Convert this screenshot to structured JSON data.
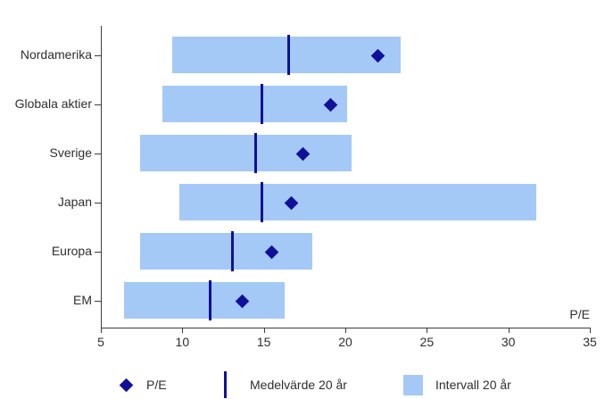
{
  "chart_data": {
    "type": "bar",
    "subtype": "horizontal-range-with-markers",
    "categories": [
      "Nordamerika",
      "Globala aktier",
      "Sverige",
      "Japan",
      "Europa",
      "EM"
    ],
    "series": [
      {
        "name": "P/E",
        "marker": "diamond",
        "values": [
          22.0,
          19.1,
          17.4,
          16.7,
          15.5,
          13.7
        ]
      },
      {
        "name": "Medelvärde 20 år",
        "marker": "vline",
        "values": [
          16.5,
          14.9,
          14.5,
          14.9,
          13.1,
          11.7
        ]
      },
      {
        "name": "Intervall 20 år",
        "marker": "range",
        "low": [
          9.4,
          8.8,
          7.4,
          9.8,
          7.4,
          6.4
        ],
        "high": [
          23.4,
          20.1,
          20.4,
          31.7,
          18.0,
          16.3
        ]
      }
    ],
    "xlabel": "P/E",
    "x_ticks": [
      5,
      10,
      15,
      20,
      25,
      30,
      35
    ],
    "xlim": [
      5,
      35
    ],
    "grid": false,
    "legend_position": "bottom"
  },
  "legend": {
    "items": [
      {
        "label": "P/E",
        "marker": "diamond"
      },
      {
        "label": "Medelvärde 20 år",
        "marker": "vline"
      },
      {
        "label": "Intervall 20 år",
        "marker": "square"
      }
    ]
  },
  "colors": {
    "range_fill": "#A4C9F7",
    "navy": "#10109A",
    "axis": "#3c3c3c",
    "text": "#2e2e2e"
  }
}
